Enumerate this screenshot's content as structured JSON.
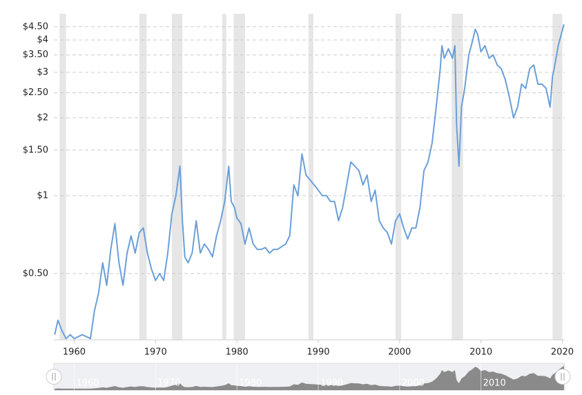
{
  "chart_data": {
    "type": "line",
    "log_scale": true,
    "grid": true,
    "xlim": [
      1957.5,
      2020.3
    ],
    "ylim": [
      0.277,
      5.05
    ],
    "xticks": [
      1960,
      1970,
      1980,
      1990,
      2000,
      2010,
      2020
    ],
    "yticks": [
      {
        "value": 0.5,
        "label": "$0.50"
      },
      {
        "value": 1,
        "label": "$1"
      },
      {
        "value": 1.5,
        "label": "$1.50"
      },
      {
        "value": 2,
        "label": "$2"
      },
      {
        "value": 2.5,
        "label": "$2.50"
      },
      {
        "value": 3,
        "label": "$3"
      },
      {
        "value": 3.5,
        "label": "$3.50"
      },
      {
        "value": 4,
        "label": "$4"
      },
      {
        "value": 4.5,
        "label": "$4.50"
      }
    ],
    "recession_color": "#e6e6e6",
    "recessions": [
      [
        1958.2,
        1959.0
      ],
      [
        1968.0,
        1968.9
      ],
      [
        1972.0,
        1973.3
      ],
      [
        1978.2,
        1978.7
      ],
      [
        1979.6,
        1981.0
      ],
      [
        1988.8,
        1989.4
      ],
      [
        1999.5,
        2000.2
      ],
      [
        2006.4,
        2007.8
      ],
      [
        2018.8,
        2020.0
      ]
    ],
    "x": [
      1957.6,
      1958,
      1958.5,
      1959,
      1959.5,
      1960,
      1961,
      1962,
      1962.5,
      1963,
      1963.5,
      1964,
      1964.5,
      1965,
      1965.5,
      1966,
      1966.5,
      1967,
      1967.5,
      1968,
      1968.5,
      1969,
      1969.5,
      1970,
      1970.5,
      1971,
      1971.5,
      1972,
      1972.5,
      1973,
      1973.3,
      1973.6,
      1974,
      1974.5,
      1975,
      1975.5,
      1976,
      1976.5,
      1977,
      1977.5,
      1978,
      1978.5,
      1979,
      1979.3,
      1979.7,
      1980,
      1980.5,
      1981,
      1981.5,
      1982,
      1982.5,
      1983,
      1983.5,
      1984,
      1984.5,
      1985,
      1986,
      1986.5,
      1987,
      1987.5,
      1988,
      1988.5,
      1989,
      1989.5,
      1990,
      1990.5,
      1991,
      1991.5,
      1992,
      1992.5,
      1993,
      1993.5,
      1994,
      1994.5,
      1995,
      1995.5,
      1996,
      1996.5,
      1997,
      1997.5,
      1998,
      1998.5,
      1999,
      1999.5,
      2000,
      2000.5,
      2001,
      2001.5,
      2002,
      2002.5,
      2003,
      2003.5,
      2004,
      2004.5,
      2005,
      2005.2,
      2005.5,
      2006,
      2006.5,
      2006.8,
      2007,
      2007.3,
      2007.6,
      2008,
      2008.5,
      2009,
      2009.3,
      2009.6,
      2010,
      2010.5,
      2011,
      2011.5,
      2012,
      2012.5,
      2013,
      2013.5,
      2014,
      2014.5,
      2015,
      2015.5,
      2016,
      2016.5,
      2017,
      2017.5,
      2018,
      2018.5,
      2018.8,
      2019,
      2019.5,
      2020.2
    ],
    "series": [
      {
        "color": "#6a9fd8",
        "values": [
          0.29,
          0.33,
          0.3,
          0.28,
          0.29,
          0.28,
          0.29,
          0.28,
          0.36,
          0.42,
          0.55,
          0.45,
          0.62,
          0.78,
          0.55,
          0.45,
          0.6,
          0.7,
          0.6,
          0.72,
          0.75,
          0.6,
          0.52,
          0.47,
          0.5,
          0.47,
          0.6,
          0.85,
          1.0,
          1.3,
          0.8,
          0.58,
          0.55,
          0.6,
          0.8,
          0.6,
          0.65,
          0.62,
          0.58,
          0.7,
          0.8,
          0.95,
          1.3,
          0.95,
          0.9,
          0.82,
          0.78,
          0.65,
          0.75,
          0.65,
          0.62,
          0.62,
          0.63,
          0.6,
          0.62,
          0.62,
          0.65,
          0.7,
          1.1,
          1.0,
          1.45,
          1.2,
          1.15,
          1.1,
          1.05,
          1.0,
          1.0,
          0.95,
          0.95,
          0.8,
          0.9,
          1.1,
          1.35,
          1.3,
          1.25,
          1.1,
          1.2,
          0.95,
          1.05,
          0.8,
          0.75,
          0.72,
          0.65,
          0.8,
          0.85,
          0.75,
          0.68,
          0.75,
          0.75,
          0.9,
          1.25,
          1.35,
          1.6,
          2.2,
          3.1,
          3.8,
          3.4,
          3.7,
          3.4,
          3.8,
          1.9,
          1.3,
          2.2,
          2.6,
          3.5,
          4.0,
          4.4,
          4.2,
          3.6,
          3.8,
          3.4,
          3.5,
          3.2,
          3.1,
          2.8,
          2.4,
          2.0,
          2.2,
          2.7,
          2.6,
          3.1,
          3.2,
          2.7,
          2.7,
          2.6,
          2.2,
          2.9,
          3.1,
          3.8,
          4.6
        ]
      }
    ]
  }
}
